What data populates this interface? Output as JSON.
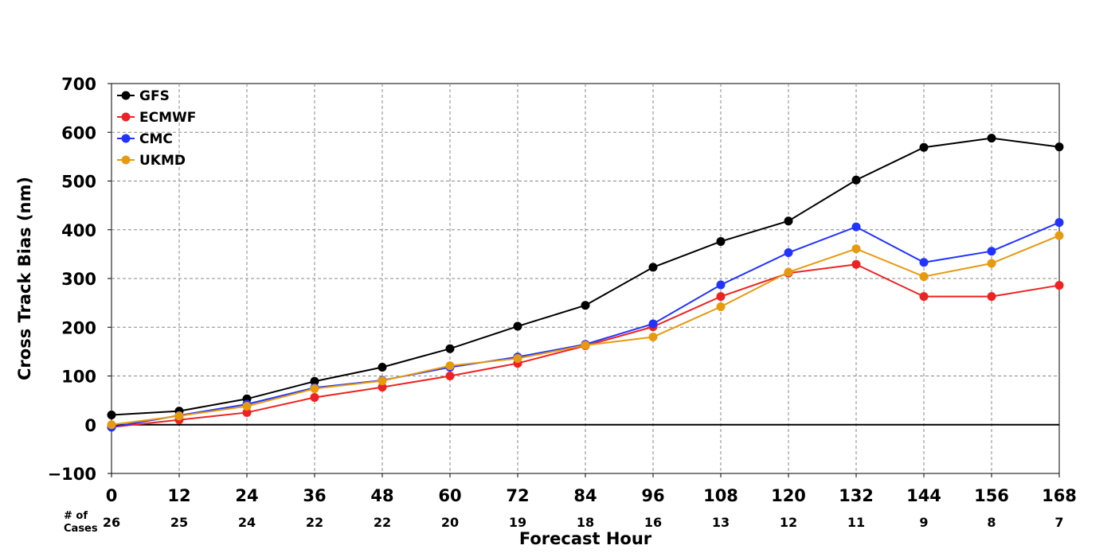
{
  "chart_data": {
    "type": "line",
    "xlabel": "Forecast Hour",
    "ylabel": "Cross Track Bias (nm)",
    "x": [
      0,
      12,
      24,
      36,
      48,
      60,
      72,
      84,
      96,
      108,
      120,
      132,
      144,
      156,
      168
    ],
    "xlim": [
      0,
      168
    ],
    "ylim": [
      -100,
      700
    ],
    "yticks": [
      -100,
      0,
      100,
      200,
      300,
      400,
      500,
      600,
      700
    ],
    "ytick_labels": [
      "−100",
      "0",
      "100",
      "200",
      "300",
      "400",
      "500",
      "600",
      "700"
    ],
    "grid": true,
    "legend_position": "top-left",
    "cases_label_line1": "# of",
    "cases_label_line2": "Cases",
    "cases": [
      26,
      25,
      24,
      22,
      22,
      20,
      19,
      18,
      16,
      13,
      12,
      11,
      9,
      8,
      7
    ],
    "series": [
      {
        "name": "GFS",
        "color": "#000000",
        "values": [
          20,
          28,
          53,
          89,
          118,
          156,
          202,
          245,
          323,
          376,
          418,
          502,
          569,
          588,
          570
        ]
      },
      {
        "name": "ECMWF",
        "color": "#ee2222",
        "values": [
          -5,
          10,
          25,
          56,
          77,
          100,
          126,
          162,
          201,
          263,
          311,
          329,
          263,
          263,
          286
        ]
      },
      {
        "name": "CMC",
        "color": "#2233ff",
        "values": [
          -5,
          19,
          42,
          76,
          91,
          118,
          139,
          165,
          207,
          287,
          353,
          406,
          333,
          356,
          415
        ]
      },
      {
        "name": "UKMD",
        "color": "#e69a10",
        "values": [
          0,
          18,
          38,
          74,
          90,
          121,
          136,
          163,
          180,
          242,
          313,
          361,
          304,
          331,
          388
        ]
      }
    ]
  }
}
